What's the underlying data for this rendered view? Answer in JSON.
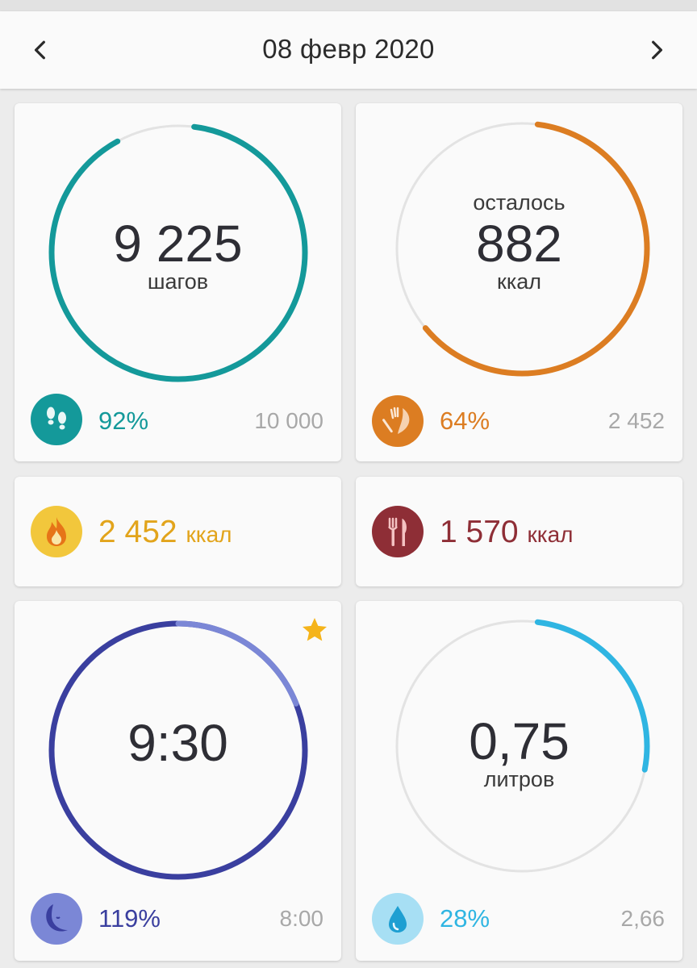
{
  "header": {
    "date": "08 февр 2020"
  },
  "steps": {
    "value": "9 225",
    "label": "шагов",
    "percent": "92%",
    "goal": "10 000",
    "progress": 0.92,
    "color": "#14999a",
    "icon": "footprints-icon"
  },
  "calories_left": {
    "prefix": "осталось",
    "value": "882",
    "unit": "ккал",
    "percent": "64%",
    "goal": "2 452",
    "progress": 0.64,
    "color": "#dc7d22",
    "icon": "fork-leaf-icon"
  },
  "burned": {
    "value": "2 452",
    "unit": "ккал",
    "color": "#e2a41b",
    "icon": "flame-icon"
  },
  "eaten": {
    "value": "1 570",
    "unit": "ккал",
    "color": "#8e2e36",
    "icon": "fork-knife-icon"
  },
  "sleep": {
    "value": "9:30",
    "percent": "119%",
    "goal": "8:00",
    "progress": 1.19,
    "color": "#3a3f9f",
    "extra_color": "#7b87d6",
    "icon": "moon-icon",
    "badge_icon": "star-icon"
  },
  "water": {
    "value": "0,75",
    "label": "литров",
    "percent": "28%",
    "goal": "2,66",
    "progress": 0.28,
    "color": "#2fb5e2",
    "icon": "water-drop-icon"
  }
}
